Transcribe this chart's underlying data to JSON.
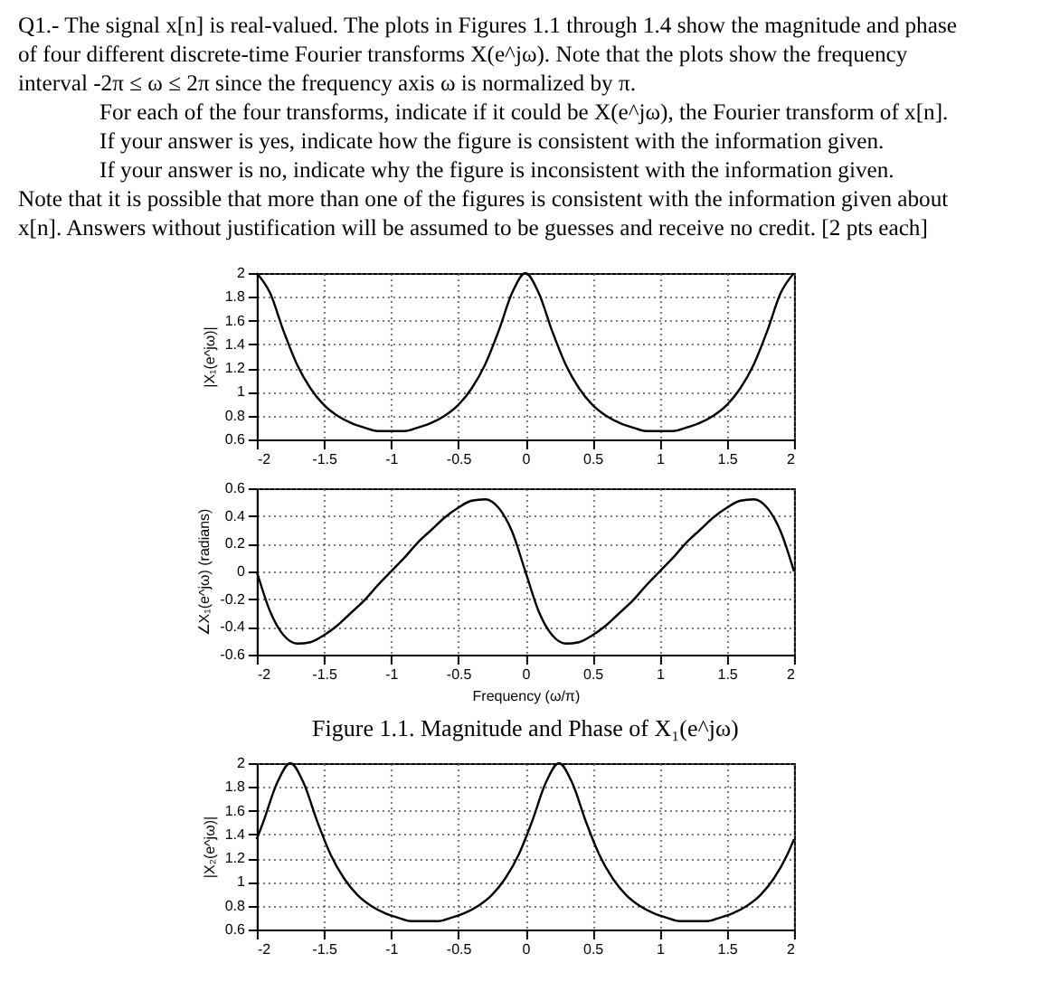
{
  "chart_data": [
    {
      "type": "other",
      "annotations": [
        "Q1.- The signal x[n] is real-valued. The plots in Figures 1.1 through 1.4 show the magnitude and phase",
        "of four different discrete-time Fourier transforms X(e^jω). Note that the plots show the frequency",
        "interval -2π ≤ ω ≤ 2π since the frequency axis ω is normalized by π.",
        "For each of the four transforms, indicate if it could be X(e^jω), the Fourier transform of x[n].",
        "If your answer is yes, indicate how the figure is consistent with the information given.",
        "If your answer is no, indicate why the figure is inconsistent with the information given.",
        "Note that it is possible that more than one of the figures is consistent with the information given about",
        "x[n]. Answers without justification will be assumed to be guesses and receive no credit.  [2 pts each]"
      ]
    },
    {
      "type": "line",
      "ylabel": "|X₁(e^jω)|",
      "grid": true,
      "marker": "none",
      "line_style": "solid",
      "x": [
        -2,
        -1.9,
        -1.8,
        -1.7,
        -1.6,
        -1.5,
        -1.4,
        -1.3,
        -1.2,
        -1.1,
        -1,
        -0.9,
        -0.8,
        -0.7,
        -0.6,
        -0.5,
        -0.4,
        -0.3,
        -0.2,
        -0.1,
        0,
        0.1,
        0.2,
        0.3,
        0.4,
        0.5,
        0.6,
        0.7,
        0.8,
        0.9,
        1,
        1.1,
        1.2,
        1.3,
        1.4,
        1.5,
        1.6,
        1.7,
        1.8,
        1.9,
        2
      ],
      "values": [
        2,
        1.83,
        1.51,
        1.23,
        1.03,
        0.89,
        0.8,
        0.74,
        0.7,
        0.67,
        0.67,
        0.67,
        0.7,
        0.74,
        0.8,
        0.89,
        1.03,
        1.23,
        1.51,
        1.83,
        2,
        1.83,
        1.51,
        1.23,
        1.03,
        0.89,
        0.8,
        0.74,
        0.7,
        0.67,
        0.67,
        0.67,
        0.7,
        0.74,
        0.8,
        0.89,
        1.03,
        1.23,
        1.51,
        1.83,
        2
      ],
      "color": "#000000",
      "xlim": [
        -2,
        2
      ],
      "ylim": [
        0.6,
        2
      ],
      "xticks": [
        -2,
        -1.5,
        -1,
        -0.5,
        0,
        0.5,
        1,
        1.5,
        2
      ],
      "yticks": [
        0.6,
        0.8,
        1,
        1.2,
        1.4,
        1.6,
        1.8,
        2
      ]
    },
    {
      "type": "line",
      "ylabel": "∠X₁(e^jω) (radians)",
      "xlabel": "Frequency (ω/π)",
      "grid": true,
      "marker": "none",
      "line_style": "solid",
      "annotations": [
        "Figure 1.1. Magnitude and Phase of X₁(e^jω)"
      ],
      "x": [
        -2,
        -1.9,
        -1.8,
        -1.7,
        -1.6,
        -1.5,
        -1.4,
        -1.3,
        -1.2,
        -1.1,
        -1,
        -0.9,
        -0.8,
        -0.7,
        -0.6,
        -0.5,
        -0.4,
        -0.3,
        -0.2,
        -0.1,
        0,
        0.1,
        0.2,
        0.3,
        0.4,
        0.5,
        0.6,
        0.7,
        0.8,
        0.9,
        1,
        1.1,
        1.2,
        1.3,
        1.4,
        1.5,
        1.6,
        1.7,
        1.8,
        1.9,
        2
      ],
      "values": [
        0,
        -0.29,
        -0.46,
        -0.52,
        -0.51,
        -0.46,
        -0.39,
        -0.3,
        -0.21,
        -0.1,
        0,
        0.1,
        0.21,
        0.3,
        0.39,
        0.46,
        0.51,
        0.52,
        0.46,
        0.29,
        0,
        -0.29,
        -0.46,
        -0.52,
        -0.51,
        -0.46,
        -0.39,
        -0.3,
        -0.21,
        -0.1,
        0,
        0.1,
        0.21,
        0.3,
        0.39,
        0.46,
        0.51,
        0.52,
        0.46,
        0.29,
        0
      ],
      "color": "#000000",
      "xlim": [
        -2,
        2
      ],
      "ylim": [
        -0.6,
        0.6
      ],
      "xticks": [
        -2,
        -1.5,
        -1,
        -0.5,
        0,
        0.5,
        1,
        1.5,
        2
      ],
      "yticks": [
        -0.6,
        -0.4,
        -0.2,
        0,
        0.2,
        0.4,
        0.6
      ]
    },
    {
      "type": "line",
      "ylabel": "|X₂(e^jω)|",
      "grid": true,
      "marker": "none",
      "line_style": "solid",
      "x": [
        -2,
        -1.95,
        -1.85,
        -1.75,
        -1.65,
        -1.55,
        -1.45,
        -1.35,
        -1.25,
        -1.15,
        -1.05,
        -0.95,
        -0.85,
        -0.75,
        -0.65,
        -0.55,
        -0.45,
        -0.35,
        -0.25,
        -0.15,
        -0.05,
        0.05,
        0.15,
        0.25,
        0.35,
        0.45,
        0.55,
        0.65,
        0.75,
        0.85,
        0.95,
        1.05,
        1.15,
        1.25,
        1.35,
        1.45,
        1.55,
        1.65,
        1.75,
        1.85,
        1.95,
        2
      ],
      "values": [
        1.36,
        1.51,
        1.83,
        2,
        1.83,
        1.51,
        1.23,
        1.03,
        0.89,
        0.8,
        0.74,
        0.7,
        0.67,
        0.67,
        0.67,
        0.7,
        0.74,
        0.8,
        0.89,
        1.03,
        1.23,
        1.51,
        1.83,
        2,
        1.83,
        1.51,
        1.23,
        1.03,
        0.89,
        0.8,
        0.74,
        0.7,
        0.67,
        0.67,
        0.67,
        0.7,
        0.74,
        0.8,
        0.89,
        1.03,
        1.23,
        1.36
      ],
      "color": "#000000",
      "xlim": [
        -2,
        2
      ],
      "ylim": [
        0.6,
        2
      ],
      "xticks": [
        -2,
        -1.5,
        -1,
        -0.5,
        0,
        0.5,
        1,
        1.5,
        2
      ],
      "yticks": [
        0.6,
        0.8,
        1,
        1.2,
        1.4,
        1.6,
        1.8,
        2
      ]
    }
  ]
}
